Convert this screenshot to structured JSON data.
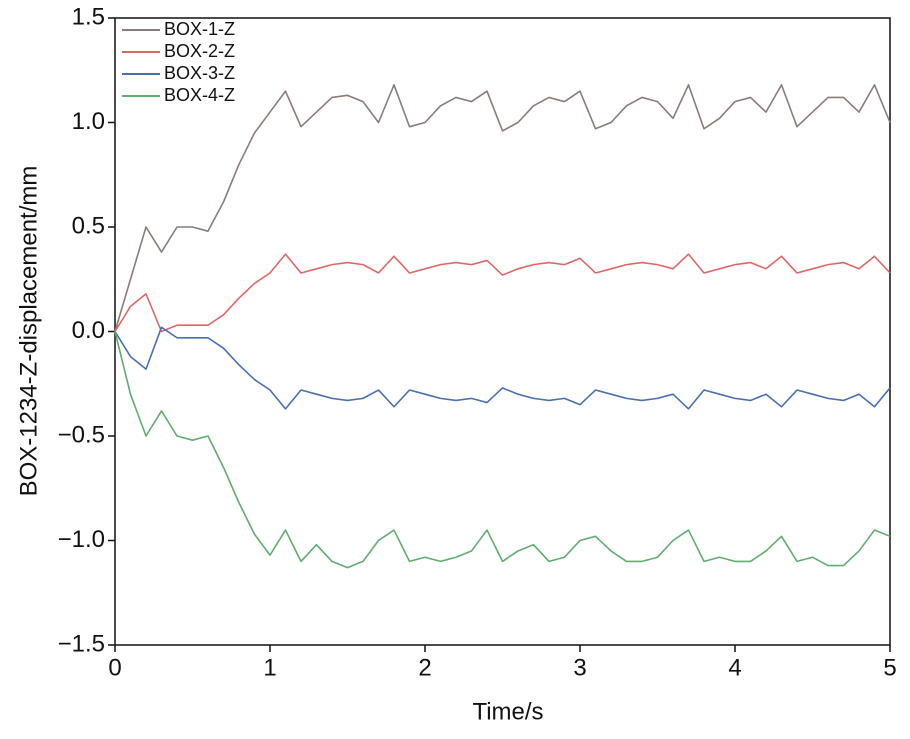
{
  "chart_data": {
    "type": "line",
    "xlabel": "Time/s",
    "ylabel": "BOX-1234-Z-displacement/mm",
    "x": [
      0,
      0.1,
      0.2,
      0.3,
      0.4,
      0.5,
      0.6,
      0.7,
      0.8,
      0.9,
      1,
      1.1,
      1.2,
      1.3,
      1.4,
      1.5,
      1.6,
      1.7,
      1.8,
      1.9,
      2,
      2.1,
      2.2,
      2.3,
      2.4,
      2.5,
      2.6,
      2.7,
      2.8,
      2.9,
      3,
      3.1,
      3.2,
      3.3,
      3.4,
      3.5,
      3.6,
      3.7,
      3.8,
      3.9,
      4,
      4.1,
      4.2,
      4.3,
      4.4,
      4.5,
      4.6,
      4.7,
      4.8,
      4.9,
      5
    ],
    "series": [
      {
        "name": "BOX-1-Z",
        "color": "#8a7d78",
        "values": [
          0,
          0.25,
          0.5,
          0.38,
          0.5,
          0.5,
          0.48,
          0.62,
          0.8,
          0.95,
          1.05,
          1.15,
          0.98,
          1.05,
          1.12,
          1.13,
          1.1,
          1.0,
          1.18,
          0.98,
          1.0,
          1.08,
          1.12,
          1.1,
          1.15,
          0.96,
          1.0,
          1.08,
          1.12,
          1.1,
          1.15,
          0.97,
          1.0,
          1.08,
          1.12,
          1.1,
          1.02,
          1.18,
          0.97,
          1.02,
          1.1,
          1.12,
          1.05,
          1.18,
          0.98,
          1.05,
          1.12,
          1.12,
          1.05,
          1.18,
          1.0
        ]
      },
      {
        "name": "BOX-2-Z",
        "color": "#e06666",
        "values": [
          0,
          0.12,
          0.18,
          0.0,
          0.03,
          0.03,
          0.03,
          0.08,
          0.16,
          0.23,
          0.28,
          0.37,
          0.28,
          0.3,
          0.32,
          0.33,
          0.32,
          0.28,
          0.36,
          0.28,
          0.3,
          0.32,
          0.33,
          0.32,
          0.34,
          0.27,
          0.3,
          0.32,
          0.33,
          0.32,
          0.35,
          0.28,
          0.3,
          0.32,
          0.33,
          0.32,
          0.3,
          0.37,
          0.28,
          0.3,
          0.32,
          0.33,
          0.3,
          0.36,
          0.28,
          0.3,
          0.32,
          0.33,
          0.3,
          0.36,
          0.28
        ]
      },
      {
        "name": "BOX-3-Z",
        "color": "#4a6fb5",
        "values": [
          0,
          -0.12,
          -0.18,
          0.02,
          -0.03,
          -0.03,
          -0.03,
          -0.08,
          -0.16,
          -0.23,
          -0.28,
          -0.37,
          -0.28,
          -0.3,
          -0.32,
          -0.33,
          -0.32,
          -0.28,
          -0.36,
          -0.28,
          -0.3,
          -0.32,
          -0.33,
          -0.32,
          -0.34,
          -0.27,
          -0.3,
          -0.32,
          -0.33,
          -0.32,
          -0.35,
          -0.28,
          -0.3,
          -0.32,
          -0.33,
          -0.32,
          -0.3,
          -0.37,
          -0.28,
          -0.3,
          -0.32,
          -0.33,
          -0.3,
          -0.36,
          -0.28,
          -0.3,
          -0.32,
          -0.33,
          -0.3,
          -0.36,
          -0.27
        ]
      },
      {
        "name": "BOX-4-Z",
        "color": "#5fae6f",
        "values": [
          0,
          -0.3,
          -0.5,
          -0.38,
          -0.5,
          -0.52,
          -0.5,
          -0.65,
          -0.82,
          -0.97,
          -1.07,
          -0.95,
          -1.1,
          -1.02,
          -1.1,
          -1.13,
          -1.1,
          -1.0,
          -0.95,
          -1.1,
          -1.08,
          -1.1,
          -1.08,
          -1.05,
          -0.95,
          -1.1,
          -1.05,
          -1.02,
          -1.1,
          -1.08,
          -1.0,
          -0.98,
          -1.05,
          -1.1,
          -1.1,
          -1.08,
          -1.0,
          -0.95,
          -1.1,
          -1.08,
          -1.1,
          -1.1,
          -1.05,
          -0.98,
          -1.1,
          -1.08,
          -1.12,
          -1.12,
          -1.05,
          -0.95,
          -0.98
        ]
      }
    ],
    "xlim": [
      0,
      5
    ],
    "xticks": [
      0,
      1,
      2,
      3,
      4,
      5
    ],
    "ylim": [
      -1.5,
      1.5
    ],
    "yticks": [
      {
        "value": -1.5,
        "label": "−1.5"
      },
      {
        "value": -1,
        "label": "−1.0"
      },
      {
        "value": -0.5,
        "label": "−0.5"
      },
      {
        "value": 0,
        "label": "0.0"
      },
      {
        "value": 0.5,
        "label": "0.5"
      },
      {
        "value": 1,
        "label": "1.0"
      },
      {
        "value": 1.5,
        "label": "1.5"
      }
    ],
    "legend": "upper left"
  }
}
